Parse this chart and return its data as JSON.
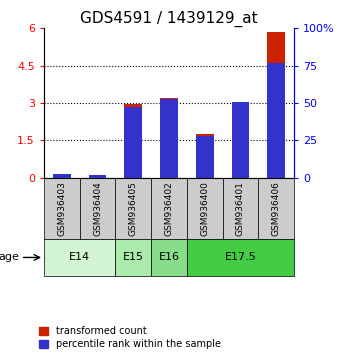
{
  "title": "GDS4591 / 1439129_at",
  "samples": [
    "GSM936403",
    "GSM936404",
    "GSM936405",
    "GSM936402",
    "GSM936400",
    "GSM936401",
    "GSM936406"
  ],
  "red_values": [
    0.12,
    0.08,
    2.95,
    3.2,
    1.75,
    3.05,
    5.85
  ],
  "blue_values_pct": [
    2.5,
    1.5,
    47.0,
    53.0,
    28.0,
    51.0,
    77.0
  ],
  "ylim_left": [
    0,
    6
  ],
  "ylim_right": [
    0,
    100
  ],
  "yticks_left": [
    0,
    1.5,
    3.0,
    4.5,
    6.0
  ],
  "ytick_labels_left": [
    "0",
    "1.5",
    "3",
    "4.5",
    "6"
  ],
  "yticks_right": [
    0,
    25,
    50,
    75,
    100
  ],
  "ytick_labels_right": [
    "0",
    "25",
    "50",
    "75",
    "100%"
  ],
  "age_groups": [
    {
      "label": "E14",
      "start": 0,
      "end": 2,
      "color": "#d4f5d4"
    },
    {
      "label": "E15",
      "start": 2,
      "end": 3,
      "color": "#aaeaaa"
    },
    {
      "label": "E16",
      "start": 3,
      "end": 4,
      "color": "#88dd88"
    },
    {
      "label": "E17.5",
      "start": 4,
      "end": 7,
      "color": "#44cc44"
    }
  ],
  "bar_width": 0.5,
  "red_color": "#cc2200",
  "blue_color": "#3333cc",
  "sample_bg_color": "#cccccc",
  "legend_red": "transformed count",
  "legend_blue": "percentile rank within the sample",
  "age_label": "age",
  "title_fontsize": 11,
  "tick_fontsize": 8,
  "label_fontsize": 8
}
